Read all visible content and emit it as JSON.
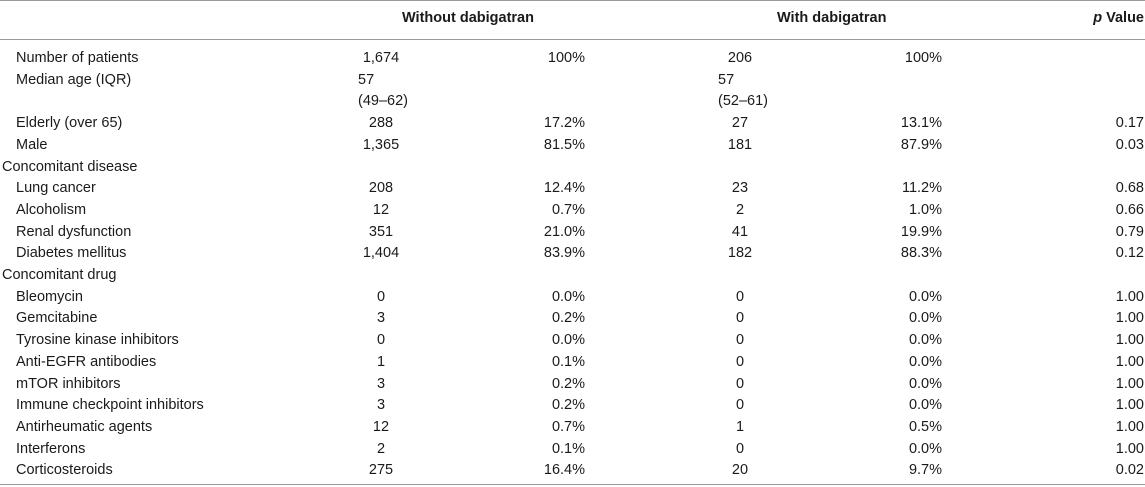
{
  "headers": {
    "without": "Without dabigatran",
    "with": "With dabigatran",
    "p_italic": "p",
    "p_rest": " Value"
  },
  "rows": [
    {
      "label": "Number of patients",
      "section": false,
      "n1": "1,674",
      "pct1": "100%",
      "n2": "206",
      "pct2": "100%",
      "p": ""
    },
    {
      "label": "Median age (IQR)",
      "section": false,
      "n1": "57",
      "pct1": "",
      "n2": "57",
      "pct2": "",
      "p": ""
    },
    {
      "label": "",
      "section": false,
      "n1": "(49–62)",
      "pct1": "",
      "n2": "(52–61)",
      "pct2": "",
      "p": ""
    },
    {
      "label": "Elderly (over 65)",
      "section": false,
      "n1": "288",
      "pct1": "17.2%",
      "n2": "27",
      "pct2": "13.1%",
      "p": "0.17"
    },
    {
      "label": "Male",
      "section": false,
      "n1": "1,365",
      "pct1": "81.5%",
      "n2": "181",
      "pct2": "87.9%",
      "p": "0.03"
    },
    {
      "label": "Concomitant disease",
      "section": true,
      "n1": "",
      "pct1": "",
      "n2": "",
      "pct2": "",
      "p": ""
    },
    {
      "label": "Lung cancer",
      "section": false,
      "n1": "208",
      "pct1": "12.4%",
      "n2": "23",
      "pct2": "11.2%",
      "p": "0.68"
    },
    {
      "label": "Alcoholism",
      "section": false,
      "n1": "12",
      "pct1": "0.7%",
      "n2": "2",
      "pct2": "1.0%",
      "p": "0.66"
    },
    {
      "label": "Renal dysfunction",
      "section": false,
      "n1": "351",
      "pct1": "21.0%",
      "n2": "41",
      "pct2": "19.9%",
      "p": "0.79"
    },
    {
      "label": "Diabetes mellitus",
      "section": false,
      "n1": "1,404",
      "pct1": "83.9%",
      "n2": "182",
      "pct2": "88.3%",
      "p": "0.12"
    },
    {
      "label": "Concomitant drug",
      "section": true,
      "n1": "",
      "pct1": "",
      "n2": "",
      "pct2": "",
      "p": ""
    },
    {
      "label": "Bleomycin",
      "section": false,
      "n1": "0",
      "pct1": "0.0%",
      "n2": "0",
      "pct2": "0.0%",
      "p": "1.00"
    },
    {
      "label": "Gemcitabine",
      "section": false,
      "n1": "3",
      "pct1": "0.2%",
      "n2": "0",
      "pct2": "0.0%",
      "p": "1.00"
    },
    {
      "label": "Tyrosine kinase inhibitors",
      "section": false,
      "n1": "0",
      "pct1": "0.0%",
      "n2": "0",
      "pct2": "0.0%",
      "p": "1.00"
    },
    {
      "label": "Anti-EGFR antibodies",
      "section": false,
      "n1": "1",
      "pct1": "0.1%",
      "n2": "0",
      "pct2": "0.0%",
      "p": "1.00"
    },
    {
      "label": "mTOR inhibitors",
      "section": false,
      "n1": "3",
      "pct1": "0.2%",
      "n2": "0",
      "pct2": "0.0%",
      "p": "1.00"
    },
    {
      "label": "Immune checkpoint inhibitors",
      "section": false,
      "n1": "3",
      "pct1": "0.2%",
      "n2": "0",
      "pct2": "0.0%",
      "p": "1.00"
    },
    {
      "label": "Antirheumatic agents",
      "section": false,
      "n1": "12",
      "pct1": "0.7%",
      "n2": "1",
      "pct2": "0.5%",
      "p": "1.00"
    },
    {
      "label": "Interferons",
      "section": false,
      "n1": "2",
      "pct1": "0.1%",
      "n2": "0",
      "pct2": "0.0%",
      "p": "1.00"
    },
    {
      "label": "Corticosteroids",
      "section": false,
      "n1": "275",
      "pct1": "16.4%",
      "n2": "20",
      "pct2": "9.7%",
      "p": "0.02"
    }
  ]
}
